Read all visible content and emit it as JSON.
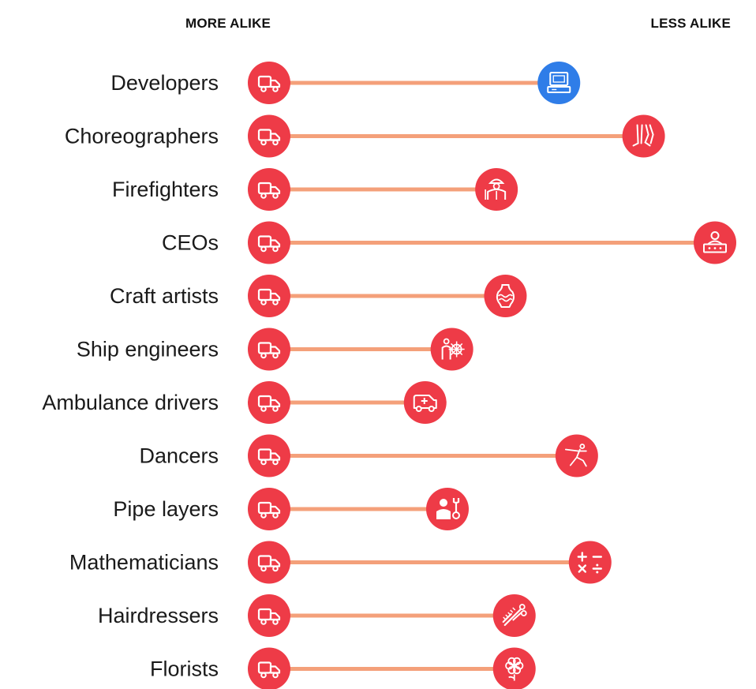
{
  "headers": {
    "left": "MORE ALIKE",
    "right": "LESS ALIKE"
  },
  "colors": {
    "line": "#F4A07A",
    "circle": "#EE3B47",
    "highlight": "#2F7DE8",
    "icon": "#ffffff"
  },
  "chart_data": {
    "type": "dumbbell",
    "title": "",
    "xlabel": "",
    "ylabel": "",
    "reference_occupation": "truck driver",
    "reference_icon": "truck-icon",
    "scale_note": "relative distance (no numeric axis shown); 0 = truck driver",
    "xlim": [
      0,
      100
    ],
    "rows": [
      {
        "label": "Developers",
        "value": 65,
        "icon": "computer-icon",
        "highlight": true
      },
      {
        "label": "Choreographers",
        "value": 84,
        "icon": "legs-icon",
        "highlight": false
      },
      {
        "label": "Firefighters",
        "value": 51,
        "icon": "firefighter-icon",
        "highlight": false
      },
      {
        "label": "CEOs",
        "value": 100,
        "icon": "presenter-icon",
        "highlight": false
      },
      {
        "label": "Craft artists",
        "value": 53,
        "icon": "vase-icon",
        "highlight": false
      },
      {
        "label": "Ship engineers",
        "value": 41,
        "icon": "ship-engineer-icon",
        "highlight": false
      },
      {
        "label": "Ambulance drivers",
        "value": 35,
        "icon": "ambulance-icon",
        "highlight": false
      },
      {
        "label": "Dancers",
        "value": 69,
        "icon": "dancer-icon",
        "highlight": false
      },
      {
        "label": "Pipe layers",
        "value": 40,
        "icon": "wrench-worker-icon",
        "highlight": false
      },
      {
        "label": "Mathematicians",
        "value": 72,
        "icon": "math-icon",
        "highlight": false
      },
      {
        "label": "Hairdressers",
        "value": 55,
        "icon": "scissors-comb-icon",
        "highlight": false
      },
      {
        "label": "Florists",
        "value": 55,
        "icon": "flower-icon",
        "highlight": false
      }
    ]
  }
}
